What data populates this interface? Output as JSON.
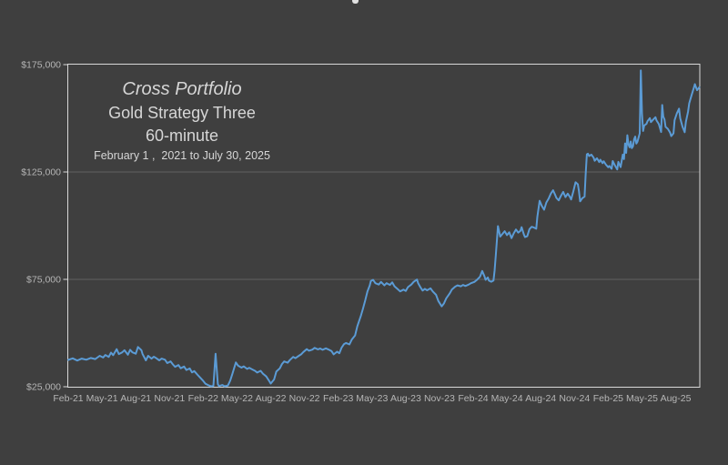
{
  "theme": {
    "background": "#3F3F3F",
    "plot_border": "#D8D8D8",
    "gridline": "#606060",
    "tick_text": "#B5B5B5",
    "annotation_text": "#D6D6D6",
    "line_color": "#5B9BD5"
  },
  "annotation": {
    "portfolio": "Cross Portfolio",
    "strategy": "Gold Strategy Three",
    "timeframe": "60-minute",
    "period": "February 1 ,  2021 to July 30, 2025"
  },
  "chart_data": {
    "type": "line",
    "legend": "none",
    "grid": "horizontal",
    "x_axis": {
      "unit": "months since Feb-2021",
      "tick_interval_months": 3,
      "range_months": [
        0,
        56.1
      ],
      "tick_labels": [
        "Feb-21",
        "May-21",
        "Aug-21",
        "Nov-21",
        "Feb-22",
        "May-22",
        "Aug-22",
        "Nov-22",
        "Feb-23",
        "May-23",
        "Aug-23",
        "Nov-23",
        "Feb-24",
        "May-24",
        "Aug-24",
        "Nov-24",
        "Feb-25",
        "May-25",
        "Aug-25"
      ]
    },
    "y_axis": {
      "tick_labels": [
        "$175,000",
        "$125,000",
        "$75,000",
        "$25,000"
      ],
      "tick_values_usd": [
        175000,
        125000,
        75000,
        25000
      ],
      "range_usd": [
        25000,
        175000
      ],
      "gridline_values_usd": [
        125000,
        75000
      ]
    },
    "series": [
      {
        "name": "equity-curve",
        "color": "#5B9BD5",
        "point_format": "[months_since_feb_2021, usd_thousands]",
        "points": [
          [
            0,
            37.5
          ],
          [
            0.4,
            38.2
          ],
          [
            0.8,
            37.2
          ],
          [
            1.2,
            38.1
          ],
          [
            1.6,
            37.6
          ],
          [
            2,
            38.4
          ],
          [
            2.4,
            37.9
          ],
          [
            2.8,
            39.4
          ],
          [
            3.1,
            38.6
          ],
          [
            3.3,
            39.8
          ],
          [
            3.6,
            38.9
          ],
          [
            3.8,
            40.9
          ],
          [
            4,
            39.7
          ],
          [
            4.3,
            42.5
          ],
          [
            4.5,
            40.2
          ],
          [
            4.8,
            41
          ],
          [
            5,
            42
          ],
          [
            5.3,
            39.9
          ],
          [
            5.5,
            42.2
          ],
          [
            5.7,
            41
          ],
          [
            6,
            40.4
          ],
          [
            6.2,
            43.5
          ],
          [
            6.5,
            42
          ],
          [
            6.6,
            40.3
          ],
          [
            6.9,
            37.3
          ],
          [
            7.1,
            39.4
          ],
          [
            7.4,
            38.1
          ],
          [
            7.6,
            39
          ],
          [
            7.8,
            38.4
          ],
          [
            8.1,
            37.3
          ],
          [
            8.3,
            38.1
          ],
          [
            8.6,
            37.6
          ],
          [
            8.8,
            36
          ],
          [
            9.1,
            36.8
          ],
          [
            9.3,
            35.4
          ],
          [
            9.5,
            34.3
          ],
          [
            9.8,
            35.1
          ],
          [
            10,
            33.6
          ],
          [
            10.3,
            34.4
          ],
          [
            10.5,
            32.8
          ],
          [
            10.8,
            33.5
          ],
          [
            11,
            31.7
          ],
          [
            11.2,
            32.3
          ],
          [
            11.5,
            30.5
          ],
          [
            11.7,
            29.4
          ],
          [
            12,
            27.7
          ],
          [
            12.2,
            26.4
          ],
          [
            12.5,
            25.6
          ],
          [
            12.7,
            25.2
          ],
          [
            12.9,
            25.4
          ],
          [
            13.1,
            40.4
          ],
          [
            13.3,
            26.2
          ],
          [
            13.4,
            25.3
          ],
          [
            13.7,
            25.8
          ],
          [
            13.9,
            25.2
          ],
          [
            14.2,
            25.6
          ],
          [
            14.4,
            27.9
          ],
          [
            14.6,
            31.2
          ],
          [
            14.9,
            36.3
          ],
          [
            15.1,
            34.8
          ],
          [
            15.4,
            33.9
          ],
          [
            15.6,
            34.5
          ],
          [
            15.9,
            33.3
          ],
          [
            16.1,
            33.8
          ],
          [
            16.3,
            33.2
          ],
          [
            16.6,
            32.4
          ],
          [
            16.8,
            31.6
          ],
          [
            17.1,
            32.4
          ],
          [
            17.3,
            31.1
          ],
          [
            17.6,
            29.8
          ],
          [
            17.8,
            28.2
          ],
          [
            18,
            26.5
          ],
          [
            18.3,
            28.4
          ],
          [
            18.5,
            32.1
          ],
          [
            18.8,
            33.5
          ],
          [
            19,
            35.6
          ],
          [
            19.2,
            36.8
          ],
          [
            19.5,
            36.2
          ],
          [
            19.7,
            37.4
          ],
          [
            20,
            38.9
          ],
          [
            20.2,
            38.3
          ],
          [
            20.5,
            39.4
          ],
          [
            20.7,
            40.1
          ],
          [
            20.9,
            41.2
          ],
          [
            21.2,
            42.5
          ],
          [
            21.4,
            41.8
          ],
          [
            21.7,
            42.3
          ],
          [
            21.9,
            43.1
          ],
          [
            22.2,
            42.4
          ],
          [
            22.4,
            42.8
          ],
          [
            22.6,
            42.2
          ],
          [
            22.9,
            42.9
          ],
          [
            23.1,
            42.4
          ],
          [
            23.4,
            41.6
          ],
          [
            23.6,
            40.1
          ],
          [
            23.9,
            41.3
          ],
          [
            24.1,
            40.6
          ],
          [
            24.3,
            43.2
          ],
          [
            24.5,
            44.8
          ],
          [
            24.7,
            45.4
          ],
          [
            25,
            44.7
          ],
          [
            25.2,
            46.9
          ],
          [
            25.5,
            48.9
          ],
          [
            25.7,
            53.2
          ],
          [
            26,
            57.8
          ],
          [
            26.2,
            61.4
          ],
          [
            26.4,
            65.3
          ],
          [
            26.6,
            69.4
          ],
          [
            26.8,
            72.1
          ],
          [
            26.9,
            74.2
          ],
          [
            27.1,
            74.8
          ],
          [
            27.3,
            73.2
          ],
          [
            27.6,
            72.6
          ],
          [
            27.8,
            73.8
          ],
          [
            28.1,
            72.2
          ],
          [
            28.3,
            73.2
          ],
          [
            28.6,
            72.4
          ],
          [
            28.8,
            73.6
          ],
          [
            29,
            71.8
          ],
          [
            29.3,
            70.4
          ],
          [
            29.5,
            69.4
          ],
          [
            29.8,
            70.2
          ],
          [
            30,
            69.6
          ],
          [
            30.2,
            71.4
          ],
          [
            30.5,
            72.6
          ],
          [
            30.7,
            73.8
          ],
          [
            31,
            74.9
          ],
          [
            31.1,
            73.2
          ],
          [
            31.3,
            71.4
          ],
          [
            31.5,
            69.8
          ],
          [
            31.7,
            70.6
          ],
          [
            31.9,
            69.9
          ],
          [
            32.2,
            70.8
          ],
          [
            32.4,
            69.4
          ],
          [
            32.7,
            67.8
          ],
          [
            32.9,
            64.9
          ],
          [
            33.2,
            62.4
          ],
          [
            33.4,
            63.8
          ],
          [
            33.6,
            66.2
          ],
          [
            33.9,
            68.4
          ],
          [
            34.1,
            70.2
          ],
          [
            34.4,
            71.6
          ],
          [
            34.6,
            72.2
          ],
          [
            34.9,
            71.8
          ],
          [
            35.1,
            72.4
          ],
          [
            35.3,
            71.9
          ],
          [
            35.6,
            72.6
          ],
          [
            35.8,
            73.2
          ],
          [
            36.1,
            73.8
          ],
          [
            36.3,
            74.6
          ],
          [
            36.6,
            76.2
          ],
          [
            36.8,
            78.9
          ],
          [
            37,
            76.4
          ],
          [
            37.1,
            74.8
          ],
          [
            37.3,
            75.9
          ],
          [
            37.4,
            74.4
          ],
          [
            37.6,
            73.9
          ],
          [
            37.8,
            74.5
          ],
          [
            37.9,
            79
          ],
          [
            38,
            86
          ],
          [
            38.2,
            99.8
          ],
          [
            38.4,
            94.9
          ],
          [
            38.6,
            96.2
          ],
          [
            38.8,
            97.4
          ],
          [
            39,
            95.6
          ],
          [
            39.2,
            96.9
          ],
          [
            39.4,
            94.2
          ],
          [
            39.6,
            96.4
          ],
          [
            39.8,
            98.2
          ],
          [
            40,
            96.8
          ],
          [
            40.2,
            97.6
          ],
          [
            40.3,
            99.3
          ],
          [
            40.5,
            95.9
          ],
          [
            40.6,
            94.7
          ],
          [
            40.8,
            95.1
          ],
          [
            41,
            98.4
          ],
          [
            41.2,
            99.5
          ],
          [
            41.4,
            99.1
          ],
          [
            41.6,
            98.6
          ],
          [
            41.7,
            104.2
          ],
          [
            41.9,
            111.6
          ],
          [
            42.1,
            109.2
          ],
          [
            42.3,
            107.4
          ],
          [
            42.5,
            110.8
          ],
          [
            42.7,
            112.6
          ],
          [
            42.9,
            114.9
          ],
          [
            43.1,
            116.5
          ],
          [
            43.3,
            114.1
          ],
          [
            43.4,
            112.9
          ],
          [
            43.6,
            111.8
          ],
          [
            43.8,
            113.9
          ],
          [
            44,
            115.7
          ],
          [
            44.2,
            113.3
          ],
          [
            44.4,
            114.9
          ],
          [
            44.6,
            113.4
          ],
          [
            44.7,
            112.2
          ],
          [
            44.9,
            115.9
          ],
          [
            45.1,
            120.2
          ],
          [
            45.3,
            119.3
          ],
          [
            45.4,
            116.1
          ],
          [
            45.5,
            111.3
          ],
          [
            45.7,
            112.8
          ],
          [
            45.9,
            113.5
          ],
          [
            46,
            124
          ],
          [
            46.1,
            133.2
          ],
          [
            46.2,
            133.5
          ],
          [
            46.3,
            132.4
          ],
          [
            46.5,
            133.1
          ],
          [
            46.7,
            131.7
          ],
          [
            46.8,
            130.2
          ],
          [
            47,
            131.4
          ],
          [
            47.2,
            129.6
          ],
          [
            47.3,
            130.7
          ],
          [
            47.5,
            129.1
          ],
          [
            47.6,
            130
          ],
          [
            47.8,
            128.4
          ],
          [
            48,
            127.2
          ],
          [
            48.1,
            127.8
          ],
          [
            48.3,
            126.5
          ],
          [
            48.4,
            130.1
          ],
          [
            48.6,
            128
          ],
          [
            48.8,
            126.2
          ],
          [
            48.9,
            129.7
          ],
          [
            49.1,
            127.3
          ],
          [
            49.3,
            133.1
          ],
          [
            49.4,
            131
          ],
          [
            49.5,
            138.3
          ],
          [
            49.6,
            133.9
          ],
          [
            49.7,
            142.1
          ],
          [
            49.8,
            137.8
          ],
          [
            49.9,
            136.5
          ],
          [
            50,
            139.2
          ],
          [
            50.1,
            136.1
          ],
          [
            50.2,
            137
          ],
          [
            50.3,
            140.2
          ],
          [
            50.4,
            141.5
          ],
          [
            50.5,
            138.2
          ],
          [
            50.6,
            139.1
          ],
          [
            50.7,
            141
          ],
          [
            50.8,
            143
          ],
          [
            50.9,
            172.3
          ],
          [
            51,
            152
          ],
          [
            51.1,
            144.1
          ],
          [
            51.2,
            146.6
          ],
          [
            51.4,
            147.4
          ],
          [
            51.5,
            148.7
          ],
          [
            51.7,
            150.1
          ],
          [
            51.8,
            148.2
          ],
          [
            52,
            149.4
          ],
          [
            52.2,
            150.5
          ],
          [
            52.3,
            149
          ],
          [
            52.5,
            147.3
          ],
          [
            52.7,
            143.6
          ],
          [
            52.8,
            156.2
          ],
          [
            52.9,
            150.8
          ],
          [
            53,
            149.5
          ],
          [
            53.1,
            146
          ],
          [
            53.3,
            145.1
          ],
          [
            53.5,
            143.3
          ],
          [
            53.6,
            141.7
          ],
          [
            53.8,
            143
          ],
          [
            53.9,
            149.1
          ],
          [
            54.1,
            152.3
          ],
          [
            54.3,
            154.5
          ],
          [
            54.4,
            150
          ],
          [
            54.6,
            146.1
          ],
          [
            54.8,
            143.5
          ],
          [
            54.9,
            148.3
          ],
          [
            55.1,
            153.1
          ],
          [
            55.2,
            157
          ],
          [
            55.4,
            160.5
          ],
          [
            55.6,
            164
          ],
          [
            55.7,
            165.9
          ],
          [
            55.9,
            163.1
          ],
          [
            56.1,
            164.5
          ]
        ]
      }
    ]
  }
}
